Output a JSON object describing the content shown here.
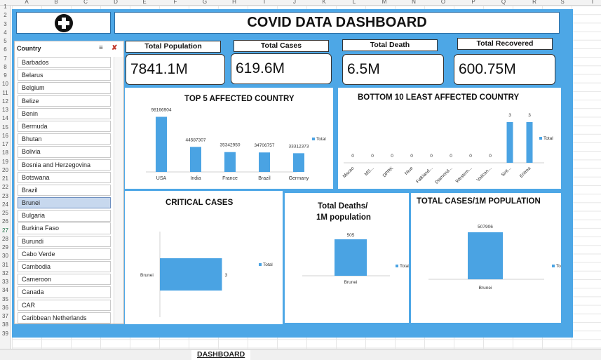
{
  "sheet": {
    "columns": [
      "A",
      "B",
      "C",
      "D",
      "E",
      "F",
      "G",
      "H",
      "I",
      "J",
      "K",
      "L",
      "M",
      "N",
      "O",
      "P",
      "Q",
      "R",
      "S",
      "T"
    ],
    "rows": [
      "1",
      "2",
      "3",
      "4",
      "5",
      "6",
      "7",
      "8",
      "9",
      "10",
      "11",
      "12",
      "13",
      "14",
      "15",
      "16",
      "17",
      "18",
      "19",
      "20",
      "21",
      "22",
      "23",
      "24",
      "25",
      "26",
      "27",
      "28",
      "29",
      "30",
      "31",
      "32",
      "33",
      "34",
      "35",
      "36",
      "37",
      "38",
      "39"
    ]
  },
  "dashboard": {
    "title": "COVID DATA DASHBOARD",
    "logo_icon": "plus-circle-icon"
  },
  "slicer": {
    "header": "Country",
    "items": [
      "Barbados",
      "Belarus",
      "Belgium",
      "Belize",
      "Benin",
      "Bermuda",
      "Bhutan",
      "Bolivia",
      "Bosnia and Herzegovina",
      "Botswana",
      "Brazil",
      "Brunei",
      "Bulgaria",
      "Burkina Faso",
      "Burundi",
      "Cabo Verde",
      "Cambodia",
      "Cameroon",
      "Canada",
      "CAR",
      "Caribbean Netherlands"
    ],
    "selected": "Brunei"
  },
  "kpis": [
    {
      "label": "Total Population",
      "value": "7841.1M"
    },
    {
      "label": "Total Cases",
      "value": "619.6M"
    },
    {
      "label": "Total Death",
      "value": "6.5M"
    },
    {
      "label": "Total Recovered",
      "value": "600.75M"
    }
  ],
  "colors": {
    "accent": "#4da7e6",
    "bar": "#4aa3e3",
    "selected": "#c7d8ee"
  },
  "chart_data": [
    {
      "type": "bar",
      "title": "TOP 5 AFFECTED COUNTRY",
      "categories": [
        "USA",
        "India",
        "France",
        "Brazil",
        "Germany"
      ],
      "series": [
        {
          "name": "Total",
          "values": [
            98166904,
            44587307,
            35342950,
            34706757,
            33312373
          ]
        }
      ],
      "value_labels": [
        "98166904",
        "44587307",
        "35342950",
        "34706757",
        "33312373"
      ],
      "ylim": [
        0,
        100000000
      ]
    },
    {
      "type": "bar",
      "title": "BOTTOM 10 LEAST AFFECTED COUNTRY",
      "categories": [
        "Macao",
        "MS...",
        "DPRK",
        "Niue",
        "Falkland...",
        "Diamond...",
        "Western...",
        "Vatican...",
        "Sint...",
        "Eritrea"
      ],
      "series": [
        {
          "name": "Total",
          "values": [
            0,
            0,
            0,
            0,
            0,
            0,
            0,
            0,
            3,
            3
          ]
        }
      ],
      "ylim": [
        0,
        3
      ]
    },
    {
      "type": "bar",
      "orientation": "horizontal",
      "title": "CRITICAL CASES",
      "categories": [
        "Brunei"
      ],
      "series": [
        {
          "name": "Total",
          "values": [
            3
          ]
        }
      ],
      "xticks": [
        "0",
        "2",
        "4"
      ],
      "xlim": [
        0,
        4
      ]
    },
    {
      "type": "bar",
      "title": "Total Deaths/\n1M population",
      "title_lines": [
        "Total Deaths/",
        "1M population"
      ],
      "categories": [
        "Brunei"
      ],
      "series": [
        {
          "name": "Total",
          "values": [
            505
          ]
        }
      ]
    },
    {
      "type": "bar",
      "title": "TOTAL CASES/1M POPULATION",
      "categories": [
        "Brunei"
      ],
      "series": [
        {
          "name": "Total",
          "values": [
            507906
          ]
        }
      ]
    }
  ],
  "tabs": [
    "DASHBOARD"
  ],
  "active_tab": "DASHBOARD"
}
